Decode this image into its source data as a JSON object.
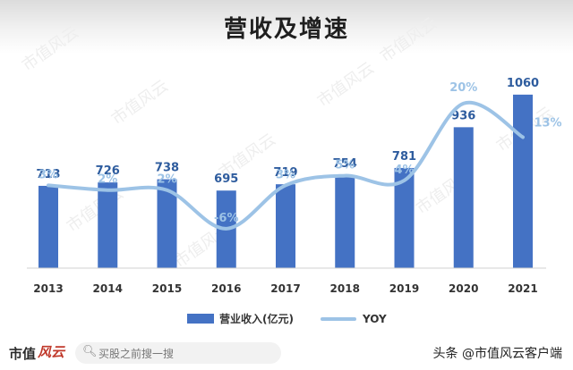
{
  "chart_data": {
    "type": "bar+line",
    "title": "营收及增速",
    "categories": [
      "2013",
      "2014",
      "2015",
      "2016",
      "2017",
      "2018",
      "2019",
      "2020",
      "2021"
    ],
    "series": [
      {
        "name": "营业收入(亿元)",
        "type": "bar",
        "color": "#4472C4",
        "values": [
          713,
          726,
          738,
          695,
          719,
          754,
          781,
          936,
          1060
        ]
      },
      {
        "name": "YOY",
        "type": "line",
        "color": "#9DC3E6",
        "values": [
          3,
          2,
          2,
          -6,
          3,
          5,
          4,
          20,
          13
        ],
        "labels": [
          "3%",
          "2%",
          "2%",
          "-6%",
          "3%",
          "5%",
          "4%",
          "20%",
          "13%"
        ]
      }
    ],
    "bar_range": [
      400,
      1080
    ],
    "line_range": [
      -9,
      22
    ],
    "legend_position": "bottom",
    "watermark": "市值风云"
  },
  "footer": {
    "brand": "市值",
    "brand_logo": "风云",
    "search_placeholder": "买股之前搜一搜",
    "credit": "头条 @市值风云客户端"
  }
}
